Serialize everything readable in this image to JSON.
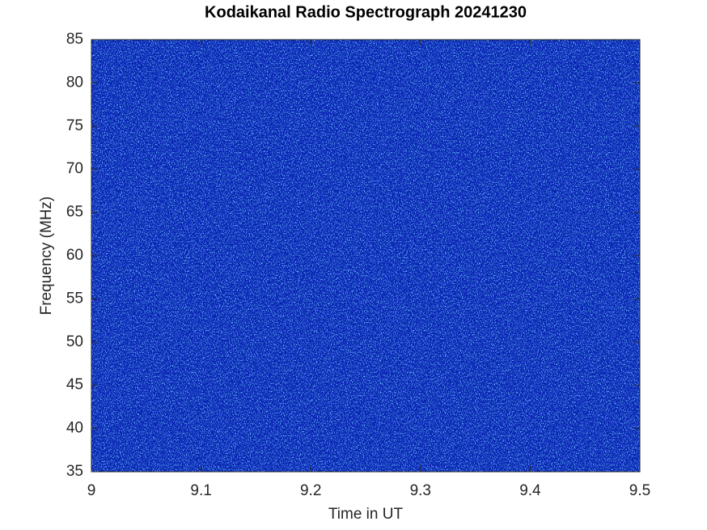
{
  "chart_data": {
    "type": "spectrogram",
    "title": "Kodaikanal Radio Spectrograph  20241230",
    "x_label": "Time in UT",
    "y_label": "Frequency (MHz)",
    "xlim": [
      9,
      9.5
    ],
    "xticks": [
      9,
      9.1,
      9.2,
      9.3,
      9.4,
      9.5
    ],
    "ylim": [
      35,
      85
    ],
    "yticks": [
      35,
      40,
      45,
      50,
      55,
      60,
      65,
      70,
      75,
      80,
      85
    ],
    "color": "#0b22b8"
  }
}
